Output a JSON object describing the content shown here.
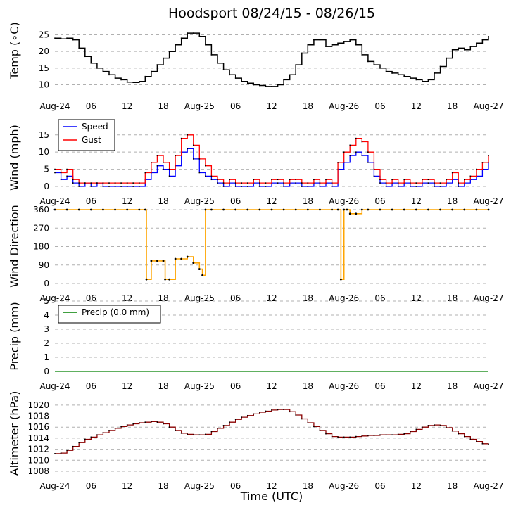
{
  "chart_data": {
    "type": "line",
    "title": "Hoodsport 08/24/15 - 08/26/15",
    "xlabel": "Time (UTC)",
    "x_range_hours": [
      0,
      72
    ],
    "x_ticks": [
      {
        "hour": 0,
        "label": "Aug-24"
      },
      {
        "hour": 6,
        "label": "06"
      },
      {
        "hour": 12,
        "label": "12"
      },
      {
        "hour": 18,
        "label": "18"
      },
      {
        "hour": 24,
        "label": "Aug-25"
      },
      {
        "hour": 30,
        "label": "06"
      },
      {
        "hour": 36,
        "label": "12"
      },
      {
        "hour": 42,
        "label": "18"
      },
      {
        "hour": 48,
        "label": "Aug-26"
      },
      {
        "hour": 54,
        "label": "06"
      },
      {
        "hour": 60,
        "label": "12"
      },
      {
        "hour": 66,
        "label": "18"
      },
      {
        "hour": 72,
        "label": "Aug-27"
      }
    ],
    "panels": [
      {
        "id": "temp",
        "ylabel": "Temp (∘C)",
        "ylim": [
          8,
          27
        ],
        "yticks": [
          10,
          15,
          20,
          25
        ],
        "series": [
          {
            "name": "Temp",
            "color": "#000000",
            "x": [
              0,
              1,
              2,
              3,
              4,
              5,
              6,
              7,
              8,
              9,
              10,
              11,
              12,
              13,
              14,
              15,
              16,
              17,
              18,
              19,
              20,
              21,
              22,
              23,
              24,
              25,
              26,
              27,
              28,
              29,
              30,
              31,
              32,
              33,
              34,
              35,
              36,
              37,
              38,
              39,
              40,
              41,
              42,
              43,
              44,
              45,
              46,
              47,
              48,
              49,
              50,
              51,
              52,
              53,
              54,
              55,
              56,
              57,
              58,
              59,
              60,
              61,
              62,
              63,
              64,
              65,
              66,
              67,
              68,
              69,
              70,
              71,
              72
            ],
            "values": [
              24,
              23.8,
              24,
              23.5,
              21,
              18.5,
              16.5,
              15,
              14,
              13,
              12,
              11.5,
              10.8,
              10.7,
              11,
              12.5,
              14,
              16,
              18,
              20,
              22,
              24,
              25.5,
              25.5,
              24.5,
              22,
              19,
              16.5,
              14.5,
              13,
              12,
              11,
              10.5,
              10,
              9.8,
              9.5,
              9.5,
              10,
              11.5,
              13,
              16,
              19.5,
              22,
              23.5,
              23.5,
              21.5,
              22,
              22.5,
              23,
              23.5,
              22,
              19,
              17,
              16,
              15,
              14,
              13.5,
              13,
              12.5,
              12,
              11.5,
              11,
              11.5,
              13.5,
              15.5,
              18,
              20.5,
              21,
              20.5,
              21.5,
              22.5,
              23.5,
              24.5
            ]
          }
        ]
      },
      {
        "id": "wind",
        "ylabel": "Wind (mph)",
        "ylim": [
          0,
          17
        ],
        "yticks": [
          0,
          5,
          10,
          15
        ],
        "legend": [
          {
            "label": "Speed",
            "color": "#0000ff"
          },
          {
            "label": "Gust",
            "color": "#ff0000"
          }
        ],
        "series": [
          {
            "name": "Speed",
            "color": "#0000ff",
            "x": [
              0,
              1,
              2,
              3,
              4,
              5,
              6,
              7,
              8,
              9,
              10,
              11,
              12,
              13,
              14,
              15,
              16,
              17,
              18,
              19,
              20,
              21,
              22,
              23,
              24,
              25,
              26,
              27,
              28,
              29,
              30,
              31,
              32,
              33,
              34,
              35,
              36,
              37,
              38,
              39,
              40,
              41,
              42,
              43,
              44,
              45,
              46,
              47,
              48,
              49,
              50,
              51,
              52,
              53,
              54,
              55,
              56,
              57,
              58,
              59,
              60,
              61,
              62,
              63,
              64,
              65,
              66,
              67,
              68,
              69,
              70,
              71,
              72
            ],
            "values": [
              4,
              2,
              3,
              1,
              0,
              1,
              0,
              1,
              0,
              0,
              0,
              0,
              0,
              0,
              0,
              2,
              4,
              6,
              5,
              3,
              6,
              10,
              11,
              8,
              4,
              3,
              2,
              1,
              0,
              1,
              0,
              0,
              0,
              1,
              0,
              0,
              1,
              1,
              0,
              1,
              1,
              0,
              0,
              1,
              0,
              1,
              0,
              5,
              7,
              9,
              10,
              9,
              7,
              3,
              1,
              0,
              1,
              0,
              1,
              0,
              0,
              1,
              1,
              0,
              0,
              1,
              2,
              0,
              1,
              2,
              3,
              5,
              7
            ]
          },
          {
            "name": "Gust",
            "color": "#ff0000",
            "x": [
              0,
              1,
              2,
              3,
              4,
              5,
              6,
              7,
              8,
              9,
              10,
              11,
              12,
              13,
              14,
              15,
              16,
              17,
              18,
              19,
              20,
              21,
              22,
              23,
              24,
              25,
              26,
              27,
              28,
              29,
              30,
              31,
              32,
              33,
              34,
              35,
              36,
              37,
              38,
              39,
              40,
              41,
              42,
              43,
              44,
              45,
              46,
              47,
              48,
              49,
              50,
              51,
              52,
              53,
              54,
              55,
              56,
              57,
              58,
              59,
              60,
              61,
              62,
              63,
              64,
              65,
              66,
              67,
              68,
              69,
              70,
              71,
              72
            ],
            "values": [
              5,
              4,
              5,
              2,
              1,
              1,
              1,
              1,
              1,
              1,
              1,
              1,
              1,
              1,
              1,
              4,
              7,
              9,
              7,
              5,
              9,
              14,
              15,
              12,
              8,
              6,
              3,
              2,
              1,
              2,
              1,
              1,
              1,
              2,
              1,
              1,
              2,
              2,
              1,
              2,
              2,
              1,
              1,
              2,
              1,
              2,
              1,
              7,
              10,
              12,
              14,
              13,
              10,
              5,
              2,
              1,
              2,
              1,
              2,
              1,
              1,
              2,
              2,
              1,
              1,
              2,
              4,
              1,
              2,
              3,
              5,
              7,
              9
            ]
          }
        ]
      },
      {
        "id": "wdir",
        "ylabel": "Wind Direction",
        "ylim": [
          0,
          360
        ],
        "yticks": [
          0,
          90,
          180,
          270,
          360
        ],
        "series": [
          {
            "name": "Direction",
            "color": "#ffa500",
            "x": [
              0,
              2,
              4,
              6,
              8,
              10,
              12,
              14,
              15,
              15.2,
              16,
              17,
              18,
              18.3,
              19,
              20,
              21,
              22,
              23,
              24,
              24.5,
              25,
              26,
              28,
              30,
              32,
              34,
              36,
              38,
              40,
              42,
              44,
              46,
              47,
              47.5,
              48,
              48.5,
              49,
              50,
              51,
              52,
              54,
              56,
              58,
              60,
              62,
              64,
              66,
              68,
              70,
              72
            ],
            "values": [
              360,
              360,
              360,
              360,
              360,
              360,
              360,
              360,
              360,
              20,
              110,
              110,
              110,
              20,
              20,
              120,
              120,
              130,
              100,
              70,
              40,
              360,
              360,
              360,
              360,
              360,
              360,
              360,
              360,
              360,
              360,
              360,
              360,
              360,
              20,
              360,
              360,
              340,
              340,
              360,
              360,
              360,
              360,
              360,
              360,
              360,
              360,
              360,
              360,
              360,
              360
            ]
          }
        ]
      },
      {
        "id": "precip",
        "ylabel": "Precip (mm)",
        "ylim": [
          0,
          5
        ],
        "yticks": [
          0,
          1,
          2,
          3,
          4,
          5
        ],
        "legend": [
          {
            "label": "Precip (0.0 mm)",
            "color": "#008000"
          }
        ],
        "series": [
          {
            "name": "Precip",
            "color": "#008000",
            "x": [
              0,
              72
            ],
            "values": [
              0,
              0
            ]
          }
        ]
      },
      {
        "id": "alt",
        "ylabel": "Altimeter (hPa)",
        "ylim": [
          1008,
          1021
        ],
        "yticks": [
          1008,
          1010,
          1012,
          1014,
          1016,
          1018,
          1020
        ],
        "series": [
          {
            "name": "Altimeter",
            "color": "#8b0000",
            "x": [
              0,
              1,
              2,
              3,
              4,
              5,
              6,
              7,
              8,
              9,
              10,
              11,
              12,
              13,
              14,
              15,
              16,
              17,
              18,
              19,
              20,
              21,
              22,
              23,
              24,
              25,
              26,
              27,
              28,
              29,
              30,
              31,
              32,
              33,
              34,
              35,
              36,
              37,
              38,
              39,
              40,
              41,
              42,
              43,
              44,
              45,
              46,
              47,
              48,
              49,
              50,
              51,
              52,
              53,
              54,
              55,
              56,
              57,
              58,
              59,
              60,
              61,
              62,
              63,
              64,
              65,
              66,
              67,
              68,
              69,
              70,
              71,
              72
            ],
            "values": [
              1011.2,
              1011.3,
              1011.8,
              1012.5,
              1013.2,
              1013.8,
              1014.2,
              1014.6,
              1015.0,
              1015.4,
              1015.8,
              1016.1,
              1016.4,
              1016.6,
              1016.8,
              1016.9,
              1017.0,
              1016.9,
              1016.6,
              1016.0,
              1015.4,
              1014.9,
              1014.7,
              1014.6,
              1014.6,
              1014.7,
              1015.2,
              1015.8,
              1016.3,
              1016.9,
              1017.4,
              1017.8,
              1018.1,
              1018.4,
              1018.7,
              1018.9,
              1019.1,
              1019.2,
              1019.2,
              1018.8,
              1018.2,
              1017.5,
              1016.8,
              1016.1,
              1015.4,
              1014.8,
              1014.3,
              1014.2,
              1014.2,
              1014.2,
              1014.3,
              1014.4,
              1014.5,
              1014.5,
              1014.6,
              1014.6,
              1014.6,
              1014.7,
              1014.8,
              1015.2,
              1015.6,
              1016.0,
              1016.3,
              1016.4,
              1016.3,
              1015.9,
              1015.3,
              1014.8,
              1014.3,
              1013.8,
              1013.4,
              1013.0,
              1012.9
            ]
          }
        ]
      }
    ]
  }
}
